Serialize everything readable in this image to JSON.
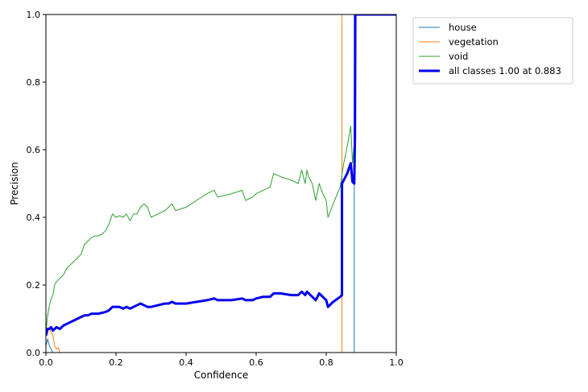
{
  "chart_data": {
    "type": "line",
    "title": "",
    "xlabel": "Confidence",
    "ylabel": "Precision",
    "xlim": [
      0,
      1
    ],
    "ylim": [
      0,
      1
    ],
    "xticks": [
      "0.0",
      "0.2",
      "0.4",
      "0.6",
      "0.8",
      "1.0"
    ],
    "yticks": [
      "0.0",
      "0.2",
      "0.4",
      "0.6",
      "0.8",
      "1.0"
    ],
    "grid": false,
    "legend_position": "outside-top-right",
    "series": [
      {
        "name": "house",
        "color": "#1f77b4",
        "width": 1,
        "points": [
          [
            0,
            0.02
          ],
          [
            0.005,
            0.04
          ],
          [
            0.01,
            0.02
          ],
          [
            0.015,
            0.01
          ],
          [
            0.02,
            0
          ],
          [
            0.88,
            0
          ],
          [
            0.88,
            1
          ],
          [
            1,
            1
          ]
        ]
      },
      {
        "name": "vegetation",
        "color": "#ff7f0e",
        "width": 1,
        "points": [
          [
            0,
            0.06
          ],
          [
            0.01,
            0.07
          ],
          [
            0.02,
            0.05
          ],
          [
            0.025,
            0.02
          ],
          [
            0.03,
            0.01
          ],
          [
            0.035,
            0.015
          ],
          [
            0.04,
            0
          ],
          [
            0.845,
            0
          ],
          [
            0.845,
            1
          ],
          [
            1,
            1
          ]
        ]
      },
      {
        "name": "void",
        "color": "#2ca02c",
        "width": 1,
        "points": [
          [
            0,
            0.06
          ],
          [
            0.005,
            0.11
          ],
          [
            0.01,
            0.14
          ],
          [
            0.015,
            0.16
          ],
          [
            0.02,
            0.17
          ],
          [
            0.025,
            0.2
          ],
          [
            0.03,
            0.21
          ],
          [
            0.04,
            0.22
          ],
          [
            0.05,
            0.23
          ],
          [
            0.06,
            0.25
          ],
          [
            0.07,
            0.26
          ],
          [
            0.08,
            0.27
          ],
          [
            0.09,
            0.28
          ],
          [
            0.1,
            0.29
          ],
          [
            0.11,
            0.32
          ],
          [
            0.12,
            0.33
          ],
          [
            0.13,
            0.34
          ],
          [
            0.14,
            0.345
          ],
          [
            0.15,
            0.345
          ],
          [
            0.16,
            0.35
          ],
          [
            0.17,
            0.36
          ],
          [
            0.18,
            0.38
          ],
          [
            0.19,
            0.41
          ],
          [
            0.2,
            0.4
          ],
          [
            0.21,
            0.405
          ],
          [
            0.22,
            0.4
          ],
          [
            0.23,
            0.41
          ],
          [
            0.24,
            0.39
          ],
          [
            0.25,
            0.41
          ],
          [
            0.26,
            0.41
          ],
          [
            0.27,
            0.43
          ],
          [
            0.28,
            0.44
          ],
          [
            0.29,
            0.43
          ],
          [
            0.3,
            0.4
          ],
          [
            0.32,
            0.41
          ],
          [
            0.34,
            0.42
          ],
          [
            0.35,
            0.43
          ],
          [
            0.36,
            0.44
          ],
          [
            0.37,
            0.42
          ],
          [
            0.4,
            0.43
          ],
          [
            0.43,
            0.45
          ],
          [
            0.46,
            0.47
          ],
          [
            0.48,
            0.48
          ],
          [
            0.49,
            0.46
          ],
          [
            0.53,
            0.47
          ],
          [
            0.56,
            0.48
          ],
          [
            0.57,
            0.45
          ],
          [
            0.59,
            0.46
          ],
          [
            0.6,
            0.47
          ],
          [
            0.62,
            0.48
          ],
          [
            0.64,
            0.49
          ],
          [
            0.65,
            0.53
          ],
          [
            0.67,
            0.52
          ],
          [
            0.7,
            0.51
          ],
          [
            0.72,
            0.5
          ],
          [
            0.73,
            0.54
          ],
          [
            0.74,
            0.5
          ],
          [
            0.745,
            0.54
          ],
          [
            0.75,
            0.52
          ],
          [
            0.76,
            0.5
          ],
          [
            0.77,
            0.45
          ],
          [
            0.78,
            0.5
          ],
          [
            0.79,
            0.47
          ],
          [
            0.8,
            0.45
          ],
          [
            0.805,
            0.4
          ],
          [
            0.82,
            0.44
          ],
          [
            0.84,
            0.49
          ],
          [
            0.85,
            0.56
          ],
          [
            0.86,
            0.61
          ],
          [
            0.87,
            0.67
          ],
          [
            0.875,
            0.56
          ],
          [
            0.88,
            0.62
          ],
          [
            0.885,
            1
          ],
          [
            1,
            1
          ]
        ]
      },
      {
        "name": "all classes 1.00 at 0.883",
        "color": "#0000ee",
        "width": 3,
        "points": [
          [
            0,
            0.05
          ],
          [
            0.005,
            0.07
          ],
          [
            0.01,
            0.07
          ],
          [
            0.015,
            0.075
          ],
          [
            0.02,
            0.065
          ],
          [
            0.03,
            0.075
          ],
          [
            0.04,
            0.07
          ],
          [
            0.05,
            0.08
          ],
          [
            0.06,
            0.085
          ],
          [
            0.07,
            0.09
          ],
          [
            0.08,
            0.095
          ],
          [
            0.09,
            0.1
          ],
          [
            0.1,
            0.105
          ],
          [
            0.11,
            0.11
          ],
          [
            0.12,
            0.11
          ],
          [
            0.13,
            0.115
          ],
          [
            0.15,
            0.115
          ],
          [
            0.17,
            0.12
          ],
          [
            0.18,
            0.125
          ],
          [
            0.19,
            0.135
          ],
          [
            0.2,
            0.135
          ],
          [
            0.21,
            0.135
          ],
          [
            0.22,
            0.13
          ],
          [
            0.23,
            0.135
          ],
          [
            0.24,
            0.13
          ],
          [
            0.25,
            0.135
          ],
          [
            0.26,
            0.14
          ],
          [
            0.27,
            0.145
          ],
          [
            0.28,
            0.14
          ],
          [
            0.29,
            0.135
          ],
          [
            0.3,
            0.135
          ],
          [
            0.32,
            0.14
          ],
          [
            0.34,
            0.145
          ],
          [
            0.35,
            0.145
          ],
          [
            0.36,
            0.15
          ],
          [
            0.37,
            0.145
          ],
          [
            0.4,
            0.145
          ],
          [
            0.43,
            0.15
          ],
          [
            0.46,
            0.155
          ],
          [
            0.48,
            0.16
          ],
          [
            0.49,
            0.155
          ],
          [
            0.53,
            0.155
          ],
          [
            0.56,
            0.16
          ],
          [
            0.57,
            0.155
          ],
          [
            0.59,
            0.155
          ],
          [
            0.6,
            0.16
          ],
          [
            0.62,
            0.165
          ],
          [
            0.64,
            0.165
          ],
          [
            0.65,
            0.175
          ],
          [
            0.67,
            0.175
          ],
          [
            0.7,
            0.17
          ],
          [
            0.72,
            0.17
          ],
          [
            0.73,
            0.18
          ],
          [
            0.74,
            0.17
          ],
          [
            0.745,
            0.18
          ],
          [
            0.75,
            0.175
          ],
          [
            0.76,
            0.165
          ],
          [
            0.77,
            0.155
          ],
          [
            0.78,
            0.175
          ],
          [
            0.79,
            0.165
          ],
          [
            0.8,
            0.155
          ],
          [
            0.805,
            0.135
          ],
          [
            0.82,
            0.15
          ],
          [
            0.84,
            0.165
          ],
          [
            0.845,
            0.17
          ],
          [
            0.845,
            0.5
          ],
          [
            0.85,
            0.51
          ],
          [
            0.86,
            0.53
          ],
          [
            0.87,
            0.56
          ],
          [
            0.875,
            0.505
          ],
          [
            0.88,
            0.5
          ],
          [
            0.882,
            0.64
          ],
          [
            0.883,
            1
          ],
          [
            1,
            1
          ]
        ]
      }
    ]
  }
}
